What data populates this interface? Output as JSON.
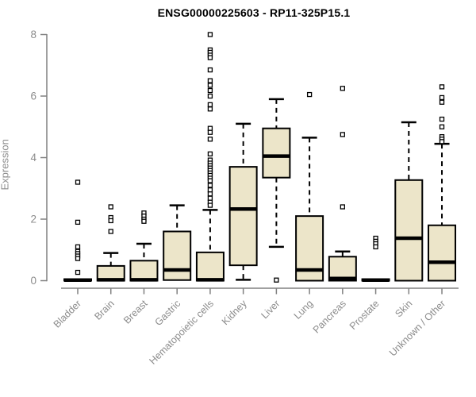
{
  "title": "ENSG00000225603 - RP11-325P15.1",
  "colors": {
    "box_fill": "#ECE5C9",
    "box_stroke": "#000000",
    "median": "#000000",
    "outlier_stroke": "#000000",
    "axis": "#808080",
    "tick_text": "#8C8C8C",
    "title_text": "#000000",
    "background": "#FFFFFF"
  },
  "chart_data": {
    "type": "boxplot",
    "title": "ENSG00000225603 - RP11-325P15.1",
    "xlabel": "",
    "ylabel": "Expression",
    "ylim": [
      0,
      8
    ],
    "yticks": [
      0,
      2,
      4,
      6,
      8
    ],
    "grid": false,
    "legend": "none",
    "categories": [
      "Bladder",
      "Brain",
      "Breast",
      "Gastric",
      "Hematopoietic cells",
      "Kidney",
      "Liver",
      "Lung",
      "Pancreas",
      "Prostate",
      "Skin",
      "Unknown / Other"
    ],
    "series": [
      {
        "name": "Bladder",
        "whisker_low": 0,
        "q1": 0,
        "median": 0.02,
        "q3": 0.05,
        "whisker_high": 0.05,
        "outliers": [
          3.2,
          1.9,
          1.1,
          0.95,
          0.88,
          0.8,
          0.72,
          0.27
        ]
      },
      {
        "name": "Brain",
        "whisker_low": 0,
        "q1": 0,
        "median": 0.03,
        "q3": 0.48,
        "whisker_high": 0.9,
        "outliers": [
          2.4,
          2.05,
          1.95,
          1.6
        ]
      },
      {
        "name": "Breast",
        "whisker_low": 0,
        "q1": 0,
        "median": 0.03,
        "q3": 0.65,
        "whisker_high": 1.2,
        "outliers": [
          2.2,
          2.1,
          2.0,
          1.93
        ]
      },
      {
        "name": "Gastric",
        "whisker_low": 0,
        "q1": 0.02,
        "median": 0.35,
        "q3": 1.6,
        "whisker_high": 2.45,
        "outliers": []
      },
      {
        "name": "Hematopoietic cells",
        "whisker_low": 0,
        "q1": 0,
        "median": 0.03,
        "q3": 0.92,
        "whisker_high": 2.3,
        "outliers": [
          8.0,
          7.5,
          7.42,
          7.33,
          7.25,
          6.85,
          6.5,
          6.35,
          6.18,
          6.0,
          5.72,
          5.58,
          4.95,
          4.82,
          4.6,
          4.12,
          3.92,
          3.82,
          3.74,
          3.66,
          3.58,
          3.5,
          3.42,
          3.33,
          3.25,
          3.1,
          2.95,
          2.82,
          2.68,
          2.55,
          2.45
        ]
      },
      {
        "name": "Kidney",
        "whisker_low": 0.03,
        "q1": 0.5,
        "median": 2.33,
        "q3": 3.7,
        "whisker_high": 5.1,
        "outliers": []
      },
      {
        "name": "Liver",
        "whisker_low": 1.1,
        "q1": 3.35,
        "median": 4.05,
        "q3": 4.95,
        "whisker_high": 5.9,
        "outliers": [
          0.02
        ]
      },
      {
        "name": "Lung",
        "whisker_low": 0,
        "q1": 0,
        "median": 0.35,
        "q3": 2.1,
        "whisker_high": 4.65,
        "outliers": [
          6.05
        ]
      },
      {
        "name": "Pancreas",
        "whisker_low": 0,
        "q1": 0,
        "median": 0.07,
        "q3": 0.78,
        "whisker_high": 0.95,
        "outliers": [
          6.25,
          4.75,
          2.4
        ]
      },
      {
        "name": "Prostate",
        "whisker_low": 0,
        "q1": 0,
        "median": 0.02,
        "q3": 0.05,
        "whisker_high": 0.05,
        "outliers": [
          1.38,
          1.28,
          1.2,
          1.1
        ]
      },
      {
        "name": "Skin",
        "whisker_low": 0,
        "q1": 0,
        "median": 1.38,
        "q3": 3.27,
        "whisker_high": 5.15,
        "outliers": []
      },
      {
        "name": "Unknown / Other",
        "whisker_low": 0,
        "q1": 0,
        "median": 0.6,
        "q3": 1.8,
        "whisker_high": 4.45,
        "outliers": [
          6.3,
          5.95,
          5.8,
          5.25,
          5.0,
          4.68,
          4.6,
          4.52
        ]
      }
    ]
  }
}
